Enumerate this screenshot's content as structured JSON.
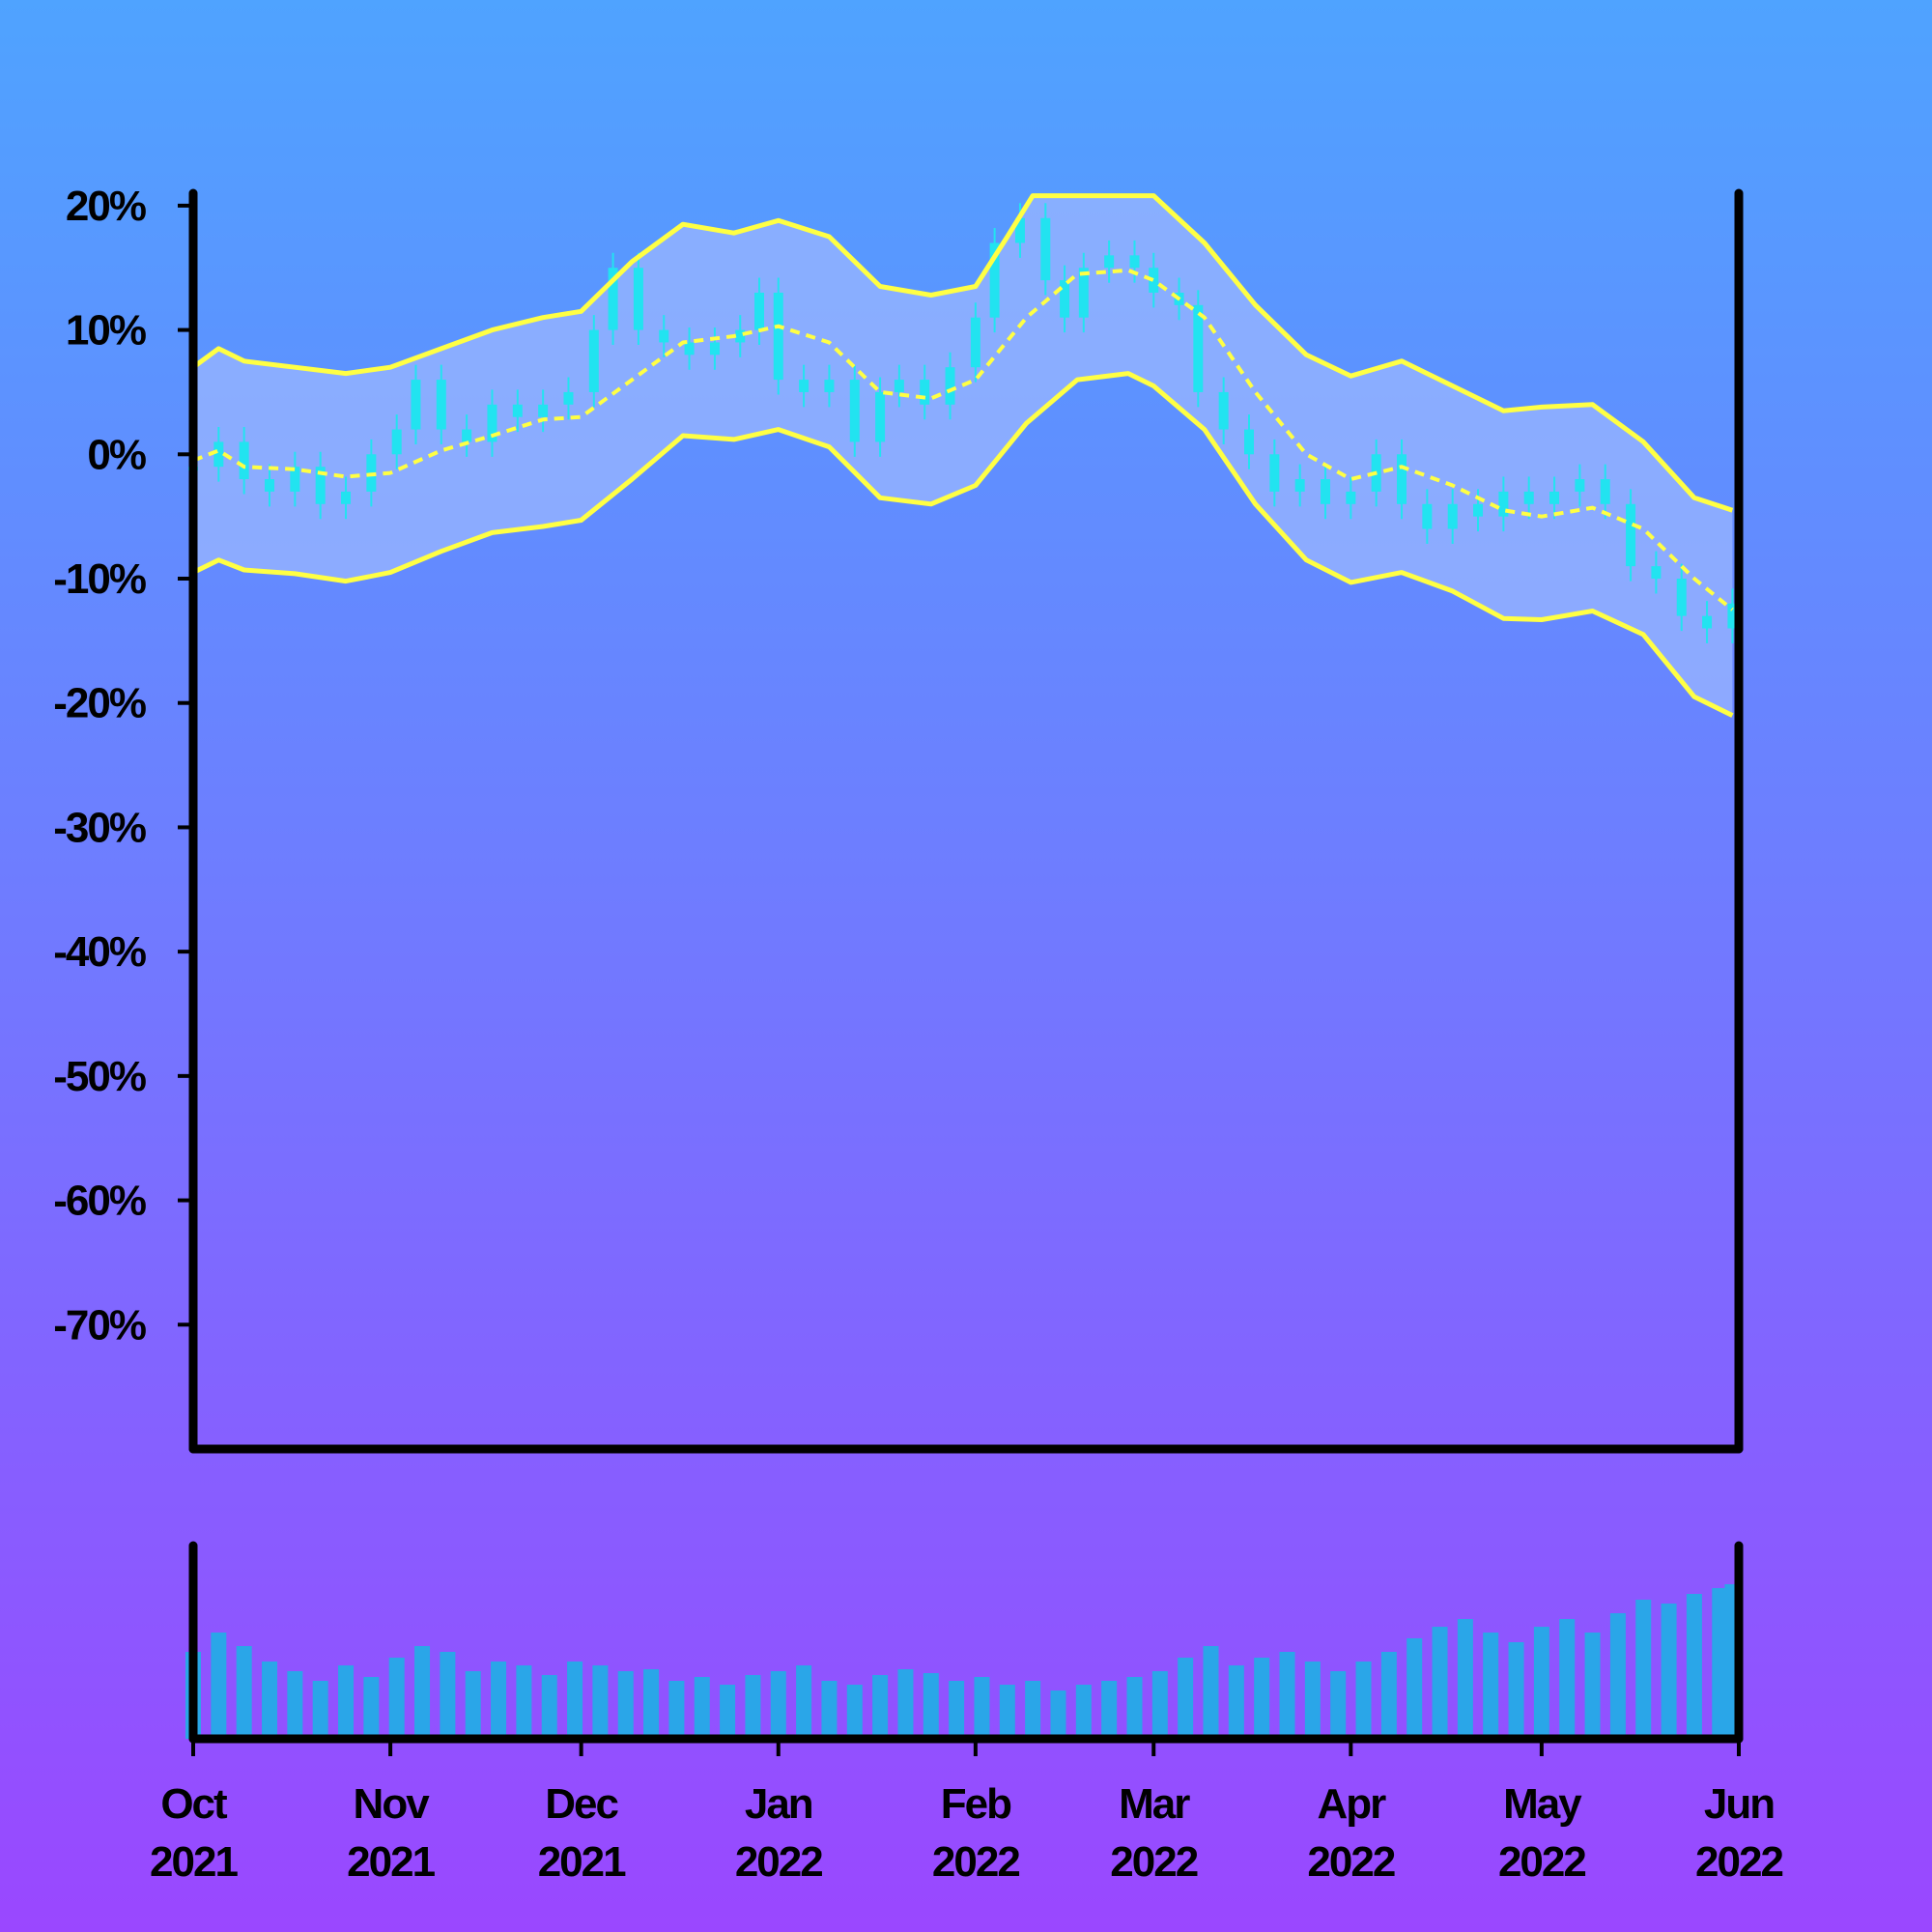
{
  "chart_data": [
    {
      "type": "candlestick",
      "title": "",
      "xlabel": "",
      "ylabel": "",
      "y_unit": "%",
      "ylim": [
        -80,
        21
      ],
      "yticks": [
        20,
        10,
        0,
        -10,
        -20,
        -30,
        -40,
        -50,
        -60,
        -70
      ],
      "ytick_labels": [
        "20%",
        "10%",
        "0%",
        "-10%",
        "-20%",
        "-30%",
        "-40%",
        "-50%",
        "-60%",
        "-70%"
      ],
      "xlim": [
        "2021-10-01",
        "2022-06-01"
      ],
      "xticks": [
        "2021-10-01",
        "2021-11-01",
        "2021-12-01",
        "2022-01-01",
        "2022-02-01",
        "2022-03-01",
        "2022-04-01",
        "2022-05-01",
        "2022-06-01"
      ],
      "xtick_labels": [
        [
          "Oct",
          "2021"
        ],
        [
          "Nov",
          "2021"
        ],
        [
          "Dec",
          "2021"
        ],
        [
          "Jan",
          "2022"
        ],
        [
          "Feb",
          "2022"
        ],
        [
          "Mar",
          "2022"
        ],
        [
          "Apr",
          "2022"
        ],
        [
          "May",
          "2022"
        ],
        [
          "Jun",
          "2022"
        ]
      ],
      "grid": false,
      "legend": "none",
      "series": [
        {
          "role": "close",
          "values": [
            [
              "2021-10-01",
              -1
            ],
            [
              "2021-10-05",
              1
            ],
            [
              "2021-10-09",
              -2
            ],
            [
              "2021-10-13",
              -3
            ],
            [
              "2021-10-17",
              -1
            ],
            [
              "2021-10-21",
              -4
            ],
            [
              "2021-10-25",
              -3
            ],
            [
              "2021-10-29",
              0
            ],
            [
              "2021-11-02",
              2
            ],
            [
              "2021-11-05",
              6
            ],
            [
              "2021-11-09",
              2
            ],
            [
              "2021-11-13",
              1
            ],
            [
              "2021-11-17",
              4
            ],
            [
              "2021-11-21",
              3
            ],
            [
              "2021-11-25",
              4
            ],
            [
              "2021-11-29",
              5
            ],
            [
              "2021-12-03",
              10
            ],
            [
              "2021-12-06",
              15
            ],
            [
              "2021-12-10",
              10
            ],
            [
              "2021-12-14",
              9
            ],
            [
              "2021-12-18",
              8
            ],
            [
              "2021-12-22",
              9
            ],
            [
              "2021-12-26",
              10
            ],
            [
              "2021-12-29",
              13
            ],
            [
              "2022-01-01",
              6
            ],
            [
              "2022-01-05",
              5
            ],
            [
              "2022-01-09",
              6
            ],
            [
              "2022-01-13",
              1
            ],
            [
              "2022-01-17",
              5
            ],
            [
              "2022-01-20",
              6
            ],
            [
              "2022-01-24",
              4
            ],
            [
              "2022-01-28",
              7
            ],
            [
              "2022-02-01",
              11
            ],
            [
              "2022-02-04",
              17
            ],
            [
              "2022-02-08",
              19
            ],
            [
              "2022-02-12",
              14
            ],
            [
              "2022-02-15",
              11
            ],
            [
              "2022-02-18",
              15
            ],
            [
              "2022-02-22",
              16
            ],
            [
              "2022-02-26",
              15
            ],
            [
              "2022-03-01",
              13
            ],
            [
              "2022-03-05",
              12
            ],
            [
              "2022-03-08",
              5
            ],
            [
              "2022-03-12",
              2
            ],
            [
              "2022-03-16",
              0
            ],
            [
              "2022-03-20",
              -3
            ],
            [
              "2022-03-24",
              -2
            ],
            [
              "2022-03-28",
              -4
            ],
            [
              "2022-04-01",
              -3
            ],
            [
              "2022-04-05",
              0
            ],
            [
              "2022-04-09",
              -4
            ],
            [
              "2022-04-13",
              -6
            ],
            [
              "2022-04-17",
              -4
            ],
            [
              "2022-04-21",
              -5
            ],
            [
              "2022-04-25",
              -3
            ],
            [
              "2022-04-29",
              -4
            ],
            [
              "2022-05-03",
              -3
            ],
            [
              "2022-05-07",
              -2
            ],
            [
              "2022-05-11",
              -4
            ],
            [
              "2022-05-15",
              -9
            ],
            [
              "2022-05-19",
              -10
            ],
            [
              "2022-05-23",
              -13
            ],
            [
              "2022-05-27",
              -14
            ],
            [
              "2022-05-31",
              -12
            ]
          ]
        },
        {
          "role": "moving-average",
          "style": "dashed",
          "values": [
            [
              "2021-10-01",
              -0.5
            ],
            [
              "2021-10-05",
              0.3
            ],
            [
              "2021-10-09",
              -1
            ],
            [
              "2021-10-17",
              -1.2
            ],
            [
              "2021-10-25",
              -1.8
            ],
            [
              "2021-11-01",
              -1.5
            ],
            [
              "2021-11-09",
              0.3
            ],
            [
              "2021-11-17",
              1.5
            ],
            [
              "2021-11-25",
              2.8
            ],
            [
              "2021-12-01",
              3
            ],
            [
              "2021-12-09",
              6
            ],
            [
              "2021-12-17",
              9
            ],
            [
              "2021-12-25",
              9.5
            ],
            [
              "2022-01-01",
              10.3
            ],
            [
              "2022-01-09",
              9
            ],
            [
              "2022-01-17",
              5
            ],
            [
              "2022-01-25",
              4.5
            ],
            [
              "2022-02-01",
              6
            ],
            [
              "2022-02-09",
              11
            ],
            [
              "2022-02-17",
              14.5
            ],
            [
              "2022-02-25",
              14.8
            ],
            [
              "2022-03-01",
              14
            ],
            [
              "2022-03-09",
              11
            ],
            [
              "2022-03-17",
              5
            ],
            [
              "2022-03-25",
              0
            ],
            [
              "2022-04-01",
              -2
            ],
            [
              "2022-04-09",
              -1
            ],
            [
              "2022-04-17",
              -2.5
            ],
            [
              "2022-04-25",
              -4.5
            ],
            [
              "2022-05-01",
              -5
            ],
            [
              "2022-05-09",
              -4.3
            ],
            [
              "2022-05-17",
              -6
            ],
            [
              "2022-05-25",
              -10
            ],
            [
              "2022-05-31",
              -12.5
            ]
          ]
        },
        {
          "role": "upper-band",
          "values": [
            [
              "2021-10-01",
              7
            ],
            [
              "2021-10-05",
              8.5
            ],
            [
              "2021-10-09",
              7.5
            ],
            [
              "2021-10-17",
              7
            ],
            [
              "2021-10-25",
              6.5
            ],
            [
              "2021-11-01",
              7
            ],
            [
              "2021-11-09",
              8.5
            ],
            [
              "2021-11-17",
              10
            ],
            [
              "2021-11-25",
              11
            ],
            [
              "2021-12-01",
              11.5
            ],
            [
              "2021-12-09",
              15.5
            ],
            [
              "2021-12-17",
              18.5
            ],
            [
              "2021-12-25",
              17.8
            ],
            [
              "2022-01-01",
              18.8
            ],
            [
              "2022-01-09",
              17.5
            ],
            [
              "2022-01-17",
              13.5
            ],
            [
              "2022-01-25",
              12.8
            ],
            [
              "2022-02-01",
              13.5
            ],
            [
              "2022-02-06",
              17.5
            ],
            [
              "2022-02-10",
              20.8
            ],
            [
              "2022-03-01",
              20.8
            ],
            [
              "2022-03-09",
              17
            ],
            [
              "2022-03-17",
              12
            ],
            [
              "2022-03-25",
              8
            ],
            [
              "2022-04-01",
              6.3
            ],
            [
              "2022-04-09",
              7.5
            ],
            [
              "2022-04-17",
              5.5
            ],
            [
              "2022-04-25",
              3.5
            ],
            [
              "2022-05-01",
              3.8
            ],
            [
              "2022-05-09",
              4
            ],
            [
              "2022-05-17",
              1
            ],
            [
              "2022-05-25",
              -3.5
            ],
            [
              "2022-05-31",
              -4.5
            ]
          ]
        },
        {
          "role": "lower-band",
          "values": [
            [
              "2021-10-01",
              -9.5
            ],
            [
              "2021-10-05",
              -8.5
            ],
            [
              "2021-10-09",
              -9.3
            ],
            [
              "2021-10-17",
              -9.6
            ],
            [
              "2021-10-25",
              -10.2
            ],
            [
              "2021-11-01",
              -9.5
            ],
            [
              "2021-11-09",
              -7.8
            ],
            [
              "2021-11-17",
              -6.3
            ],
            [
              "2021-11-25",
              -5.8
            ],
            [
              "2021-12-01",
              -5.3
            ],
            [
              "2021-12-09",
              -2
            ],
            [
              "2021-12-17",
              1.5
            ],
            [
              "2021-12-25",
              1.2
            ],
            [
              "2022-01-01",
              2
            ],
            [
              "2022-01-09",
              0.6
            ],
            [
              "2022-01-17",
              -3.5
            ],
            [
              "2022-01-25",
              -4
            ],
            [
              "2022-02-01",
              -2.5
            ],
            [
              "2022-02-09",
              2.5
            ],
            [
              "2022-02-17",
              6
            ],
            [
              "2022-02-25",
              6.5
            ],
            [
              "2022-03-01",
              5.5
            ],
            [
              "2022-03-09",
              2
            ],
            [
              "2022-03-17",
              -4
            ],
            [
              "2022-03-25",
              -8.5
            ],
            [
              "2022-04-01",
              -10.3
            ],
            [
              "2022-04-09",
              -9.5
            ],
            [
              "2022-04-17",
              -11
            ],
            [
              "2022-04-25",
              -13.2
            ],
            [
              "2022-05-01",
              -13.3
            ],
            [
              "2022-05-09",
              -12.6
            ],
            [
              "2022-05-17",
              -14.5
            ],
            [
              "2022-05-25",
              -19.5
            ],
            [
              "2022-05-31",
              -21
            ]
          ]
        }
      ],
      "colors": {
        "candle": "#22e3f0",
        "band_line": "#ffff44",
        "band_fill": "#9ab6ff",
        "axis": "#000000"
      }
    },
    {
      "type": "bar",
      "role": "volume",
      "xlim": [
        "2021-10-01",
        "2022-06-01"
      ],
      "color": "#2aa6e8",
      "values": [
        [
          "2021-10-01",
          45
        ],
        [
          "2021-10-05",
          55
        ],
        [
          "2021-10-09",
          48
        ],
        [
          "2021-10-13",
          40
        ],
        [
          "2021-10-17",
          35
        ],
        [
          "2021-10-21",
          30
        ],
        [
          "2021-10-25",
          38
        ],
        [
          "2021-10-29",
          32
        ],
        [
          "2021-11-02",
          42
        ],
        [
          "2021-11-06",
          48
        ],
        [
          "2021-11-10",
          45
        ],
        [
          "2021-11-14",
          35
        ],
        [
          "2021-11-18",
          40
        ],
        [
          "2021-11-22",
          38
        ],
        [
          "2021-11-26",
          33
        ],
        [
          "2021-11-30",
          40
        ],
        [
          "2021-12-04",
          38
        ],
        [
          "2021-12-08",
          35
        ],
        [
          "2021-12-12",
          36
        ],
        [
          "2021-12-16",
          30
        ],
        [
          "2021-12-20",
          32
        ],
        [
          "2021-12-24",
          28
        ],
        [
          "2021-12-28",
          33
        ],
        [
          "2022-01-01",
          35
        ],
        [
          "2022-01-05",
          38
        ],
        [
          "2022-01-09",
          30
        ],
        [
          "2022-01-13",
          28
        ],
        [
          "2022-01-17",
          33
        ],
        [
          "2022-01-21",
          36
        ],
        [
          "2022-01-25",
          34
        ],
        [
          "2022-01-29",
          30
        ],
        [
          "2022-02-02",
          32
        ],
        [
          "2022-02-06",
          28
        ],
        [
          "2022-02-10",
          30
        ],
        [
          "2022-02-14",
          25
        ],
        [
          "2022-02-18",
          28
        ],
        [
          "2022-02-22",
          30
        ],
        [
          "2022-02-26",
          32
        ],
        [
          "2022-03-02",
          35
        ],
        [
          "2022-03-06",
          42
        ],
        [
          "2022-03-10",
          48
        ],
        [
          "2022-03-14",
          38
        ],
        [
          "2022-03-18",
          42
        ],
        [
          "2022-03-22",
          45
        ],
        [
          "2022-03-26",
          40
        ],
        [
          "2022-03-30",
          35
        ],
        [
          "2022-04-03",
          40
        ],
        [
          "2022-04-07",
          45
        ],
        [
          "2022-04-11",
          52
        ],
        [
          "2022-04-15",
          58
        ],
        [
          "2022-04-19",
          62
        ],
        [
          "2022-04-23",
          55
        ],
        [
          "2022-04-27",
          50
        ],
        [
          "2022-05-01",
          58
        ],
        [
          "2022-05-05",
          62
        ],
        [
          "2022-05-09",
          55
        ],
        [
          "2022-05-13",
          65
        ],
        [
          "2022-05-17",
          72
        ],
        [
          "2022-05-21",
          70
        ],
        [
          "2022-05-25",
          75
        ],
        [
          "2022-05-29",
          78
        ],
        [
          "2022-05-31",
          80
        ]
      ],
      "value_unit": "% of max"
    }
  ]
}
